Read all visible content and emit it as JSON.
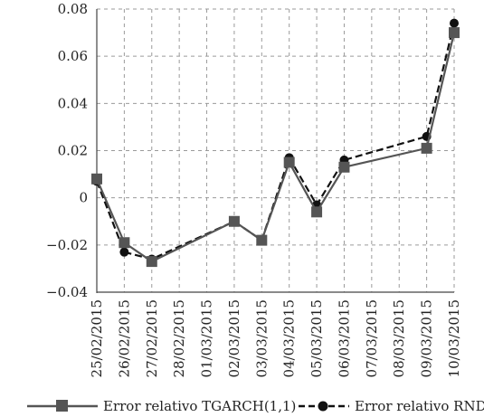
{
  "chart_data": {
    "type": "line",
    "title": "",
    "xlabel": "",
    "ylabel": "",
    "x": [
      "25/02/2015",
      "26/02/2015",
      "27/02/2015",
      "28/02/2015",
      "01/03/2015",
      "02/03/2015",
      "03/03/2015",
      "04/03/2015",
      "05/03/2015",
      "06/03/2015",
      "07/03/2015",
      "08/03/2015",
      "09/03/2015",
      "10/03/2015"
    ],
    "ylim": [
      -0.04,
      0.08
    ],
    "yticks": [
      "0.08",
      "0.06",
      "0.04",
      "0.02",
      "0",
      "−0.02",
      "−0.04"
    ],
    "grid": "horizontal dashed",
    "legend_placement": "bottom",
    "series": [
      {
        "name": "Error relativo TGARCH(1,1)",
        "marker": "square",
        "line": "solid",
        "color": "#555555",
        "values": [
          0.008,
          -0.019,
          -0.027,
          null,
          null,
          -0.01,
          -0.018,
          0.015,
          -0.006,
          0.013,
          null,
          null,
          0.021,
          0.07
        ]
      },
      {
        "name": "Error relativo RND",
        "marker": "circle",
        "line": "dashed",
        "color": "#111111",
        "values": [
          0.007,
          -0.023,
          -0.026,
          null,
          null,
          -0.01,
          -0.018,
          0.017,
          -0.003,
          0.016,
          null,
          null,
          0.026,
          0.074
        ]
      }
    ]
  }
}
